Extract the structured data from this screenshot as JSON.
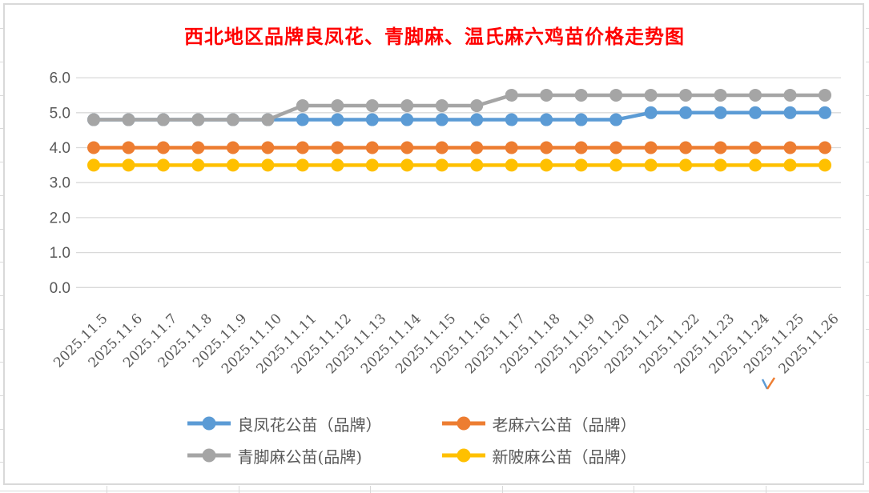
{
  "chart_data": {
    "type": "line",
    "title": "西北地区品牌良凤花、青脚麻、温氏麻六鸡苗价格走势图",
    "title_color": "#FF0000",
    "categories": [
      "2025.11.5",
      "2025.11.6",
      "2025.11.7",
      "2025.11.8",
      "2025.11.9",
      "2025.11.10",
      "2025.11.11",
      "2025.11.12",
      "2025.11.13",
      "2025.11.14",
      "2025.11.15",
      "2025.11.16",
      "2025.11.17",
      "2025.11.18",
      "2025.11.19",
      "2025.11.20",
      "2025.11.21",
      "2025.11.22",
      "2025.11.23",
      "2025.11.24",
      "2025.11.25",
      "2025.11.26"
    ],
    "series": [
      {
        "name": "良凤花公苗（品牌）",
        "color": "#5B9BD5",
        "values": [
          4.8,
          4.8,
          4.8,
          4.8,
          4.8,
          4.8,
          4.8,
          4.8,
          4.8,
          4.8,
          4.8,
          4.8,
          4.8,
          4.8,
          4.8,
          4.8,
          5.0,
          5.0,
          5.0,
          5.0,
          5.0,
          5.0
        ]
      },
      {
        "name": "老麻六公苗（品牌）",
        "color": "#ED7D31",
        "values": [
          4.0,
          4.0,
          4.0,
          4.0,
          4.0,
          4.0,
          4.0,
          4.0,
          4.0,
          4.0,
          4.0,
          4.0,
          4.0,
          4.0,
          4.0,
          4.0,
          4.0,
          4.0,
          4.0,
          4.0,
          4.0,
          4.0
        ]
      },
      {
        "name": "青脚麻公苗(品牌)",
        "color": "#A5A5A5",
        "values": [
          4.8,
          4.8,
          4.8,
          4.8,
          4.8,
          4.8,
          5.2,
          5.2,
          5.2,
          5.2,
          5.2,
          5.2,
          5.5,
          5.5,
          5.5,
          5.5,
          5.5,
          5.5,
          5.5,
          5.5,
          5.5,
          5.5
        ]
      },
      {
        "name": "新陂麻公苗（品牌）",
        "color": "#FFC000",
        "values": [
          3.5,
          3.5,
          3.5,
          3.5,
          3.5,
          3.5,
          3.5,
          3.5,
          3.5,
          3.5,
          3.5,
          3.5,
          3.5,
          3.5,
          3.5,
          3.5,
          3.5,
          3.5,
          3.5,
          3.5,
          3.5,
          3.5
        ]
      }
    ],
    "ylim": [
      0,
      6
    ],
    "ytick_labels": [
      "0.0",
      "1.0",
      "2.0",
      "3.0",
      "4.0",
      "5.0",
      "6.0"
    ],
    "grid": true,
    "legend_position": "bottom",
    "legend_rows": [
      [
        0,
        1
      ],
      [
        2,
        3
      ]
    ],
    "axis_text_color": "#595959",
    "gridline_color": "#D9D9D9"
  }
}
